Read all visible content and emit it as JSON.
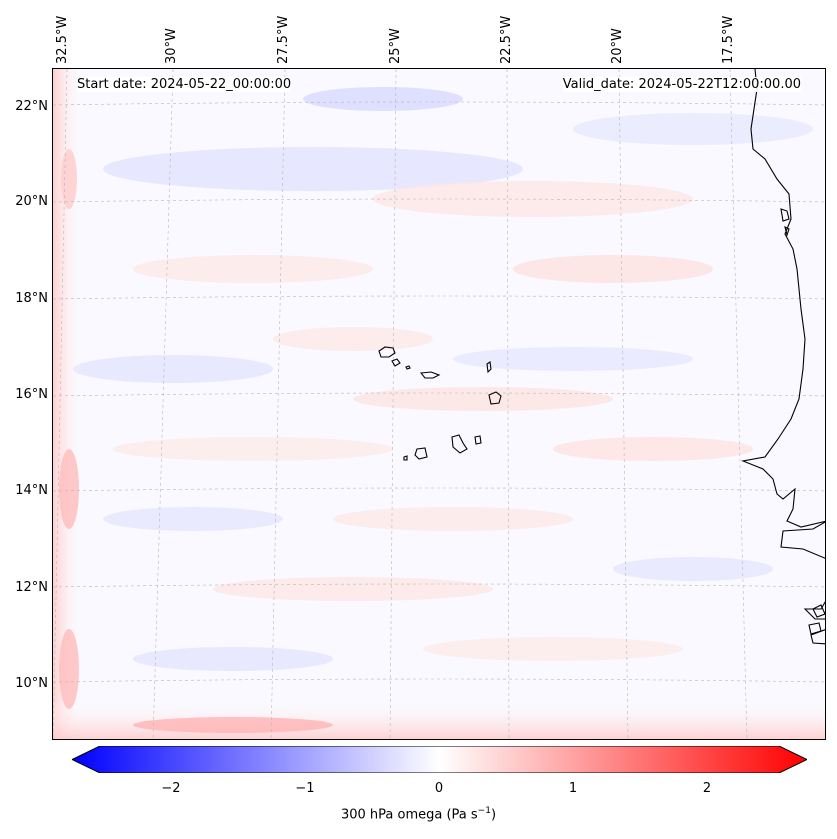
{
  "map": {
    "start_date_label": "Start date: 2024-05-22_00:00:00",
    "valid_date_label": "Valid_date: 2024-05-22T12:00:00.00",
    "lat_labels": [
      "22°N",
      "20°N",
      "18°N",
      "16°N",
      "14°N",
      "12°N",
      "10°N"
    ],
    "lon_labels": [
      "32.5°W",
      "30°W",
      "27.5°W",
      "25°W",
      "22.5°W",
      "20°W",
      "17.5°W"
    ],
    "islands": "Cape Verde islands",
    "coastline": "West African coast"
  },
  "colorbar": {
    "label": "300 hPa omega (Pa s",
    "label_unit_sup": "−1",
    "label_close": ")",
    "ticks": [
      "−2",
      "−1",
      "0",
      "1",
      "2"
    ],
    "min": -2.7,
    "max": 2.7,
    "colors": {
      "low": "#0000ff",
      "mid": "#ffffff",
      "high": "#ff0000"
    }
  }
}
